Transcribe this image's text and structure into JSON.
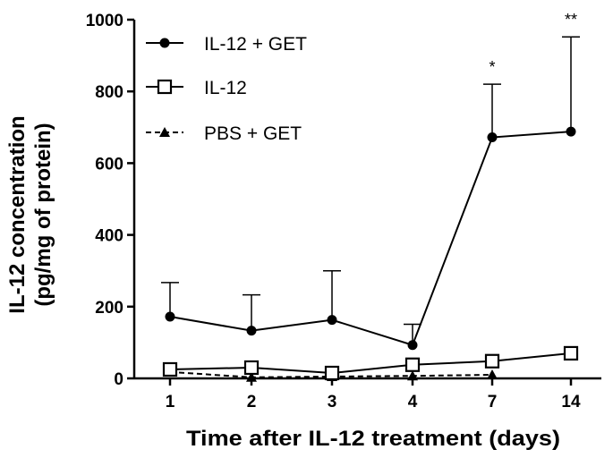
{
  "chart_data": {
    "type": "line",
    "title": "",
    "xlabel": "Time after IL-12 treatment (days)",
    "ylabel_line1": "IL-12 concentration",
    "ylabel_line2": "(pg/mg of protein)",
    "categories": [
      "1",
      "2",
      "3",
      "4",
      "7",
      "14"
    ],
    "ylim": [
      0,
      1000
    ],
    "yticks": [
      "0",
      "200",
      "400",
      "600",
      "800",
      "1000"
    ],
    "series": [
      {
        "name": "IL-12 + GET",
        "marker": "filled-circle",
        "line_style": "solid",
        "values": [
          172,
          133,
          163,
          93,
          672,
          688
        ],
        "error": [
          95,
          100,
          137,
          58,
          148,
          264
        ]
      },
      {
        "name": "IL-12",
        "marker": "open-square",
        "line_style": "solid",
        "values": [
          25,
          30,
          15,
          38,
          48,
          70
        ],
        "error": [
          0,
          0,
          0,
          0,
          0,
          0
        ]
      },
      {
        "name": "PBS + GET",
        "marker": "filled-triangle",
        "line_style": "dashed",
        "values": [
          18,
          3,
          5,
          7,
          10,
          null
        ],
        "error": [
          0,
          0,
          0,
          0,
          0,
          0
        ]
      }
    ],
    "annotations": [
      {
        "category": "7",
        "text": "*"
      },
      {
        "category": "14",
        "text": "**"
      }
    ],
    "legend_position": "top-left"
  }
}
